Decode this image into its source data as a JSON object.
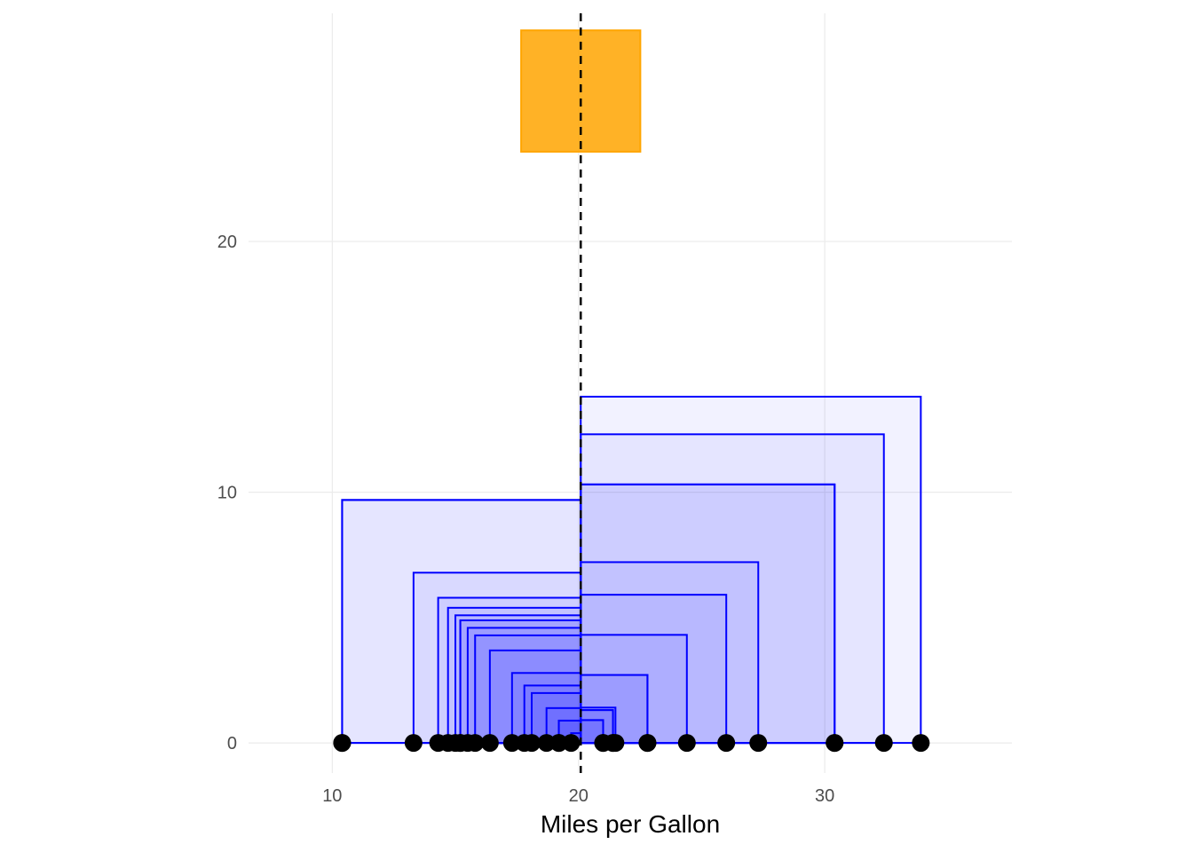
{
  "chart_data": {
    "type": "scatter",
    "title": "",
    "xlabel": "Miles per Gallon",
    "ylabel": "",
    "xlim": [
      6.6,
      37.6
    ],
    "ylim": [
      -1.2,
      29.1
    ],
    "x_ticks": [
      10,
      20,
      30
    ],
    "y_ticks": [
      0,
      10,
      20
    ],
    "x_tick_labels": [
      "10",
      "20",
      "30"
    ],
    "y_tick_labels": [
      "0",
      "10",
      "20"
    ],
    "grid": true,
    "mean_line": {
      "x": 20.09,
      "style": "dashed",
      "color": "#000000"
    },
    "mean_square": {
      "x_center": 20.09,
      "y_center": 26.0,
      "side": 4.84,
      "color": "#FFA500"
    },
    "square_color": "#0000FF",
    "points": [
      10.4,
      10.4,
      13.3,
      14.3,
      14.7,
      15.0,
      15.2,
      15.2,
      15.5,
      15.8,
      16.4,
      17.3,
      17.8,
      18.1,
      18.7,
      19.2,
      19.2,
      19.7,
      21.0,
      21.0,
      21.4,
      21.4,
      21.5,
      22.8,
      22.8,
      24.4,
      26.0,
      27.3,
      30.4,
      30.4,
      32.4,
      33.9
    ],
    "point_color": "#000000"
  }
}
